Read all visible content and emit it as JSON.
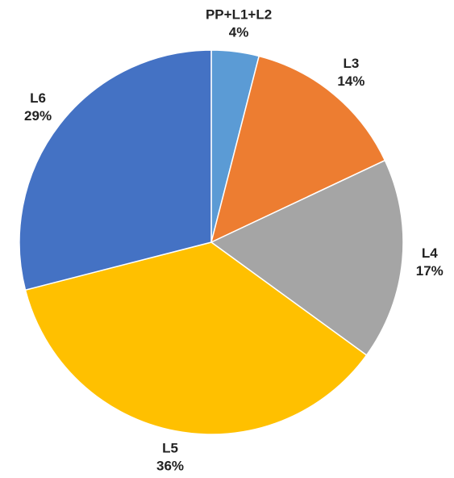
{
  "chart_data": {
    "type": "pie",
    "categories": [
      "PP+L1+L2",
      "L3",
      "L4",
      "L5",
      "L6"
    ],
    "values": [
      4,
      14,
      17,
      36,
      29
    ],
    "value_labels": [
      "4%",
      "14%",
      "17%",
      "36%",
      "29%"
    ],
    "colors": [
      "#5b9bd5",
      "#ed7d31",
      "#a5a5a5",
      "#ffc000",
      "#4472c4"
    ]
  }
}
